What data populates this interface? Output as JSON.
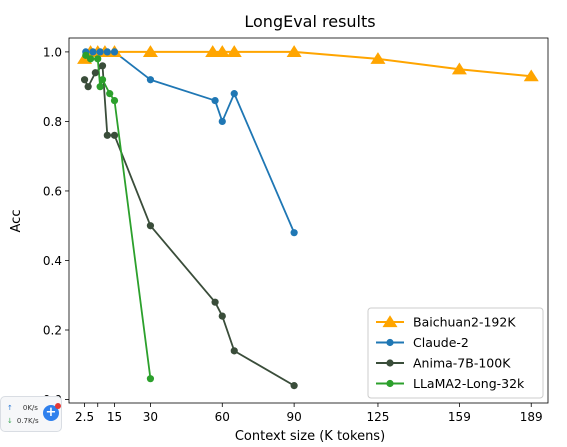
{
  "chart_data": {
    "type": "line",
    "title": "LongEval results",
    "xlabel": "Context size (K tokens)",
    "ylabel": "Acc",
    "xlim": [
      -4,
      196
    ],
    "ylim": [
      -0.01,
      1.04
    ],
    "xticks": [
      2.5,
      8,
      15,
      30,
      60,
      90,
      125,
      159,
      189
    ],
    "xtick_labels": [
      "2.5",
      "",
      "15",
      "30",
      "60",
      "90",
      "125",
      "159",
      "189"
    ],
    "yticks": [
      0.0,
      0.2,
      0.4,
      0.6,
      0.8,
      1.0
    ],
    "ytick_labels": [
      "0.0",
      "0.2",
      "0.4",
      "0.6",
      "0.8",
      "1.0"
    ],
    "grid": false,
    "legend_position": "lower-right",
    "series": [
      {
        "name": "Baichuan2-192K",
        "color": "#ffa500",
        "marker": "triangle",
        "x": [
          2.5,
          5,
          8,
          11,
          15,
          30,
          56,
          60,
          65,
          90,
          125,
          159,
          189
        ],
        "y": [
          0.98,
          1.0,
          1.0,
          1.0,
          1.0,
          1.0,
          1.0,
          1.0,
          1.0,
          1.0,
          0.98,
          0.95,
          0.93
        ]
      },
      {
        "name": "Claude-2",
        "color": "#1f77b4",
        "marker": "circle",
        "x": [
          3,
          6,
          9,
          12,
          15,
          30,
          57,
          60,
          65,
          90
        ],
        "y": [
          1.0,
          1.0,
          1.0,
          1.0,
          1.0,
          0.92,
          0.86,
          0.8,
          0.88,
          0.48
        ]
      },
      {
        "name": "Anima-7B-100K",
        "color": "#3a4d3a",
        "marker": "circle",
        "x": [
          2.5,
          4,
          7,
          10,
          12,
          15,
          30,
          57,
          60,
          65,
          90
        ],
        "y": [
          0.92,
          0.9,
          0.94,
          0.96,
          0.76,
          0.76,
          0.5,
          0.28,
          0.24,
          0.14,
          0.04
        ]
      },
      {
        "name": "LLaMA2-Long-32k",
        "color": "#2ca02c",
        "marker": "circle",
        "x": [
          3,
          5,
          8,
          9,
          10,
          13,
          15,
          30
        ],
        "y": [
          0.99,
          0.98,
          0.98,
          0.9,
          0.92,
          0.88,
          0.86,
          0.06
        ]
      }
    ]
  },
  "overlay": {
    "upload_rate": "0K/s",
    "download_rate": "0.7K/s",
    "button_symbol": "+"
  }
}
